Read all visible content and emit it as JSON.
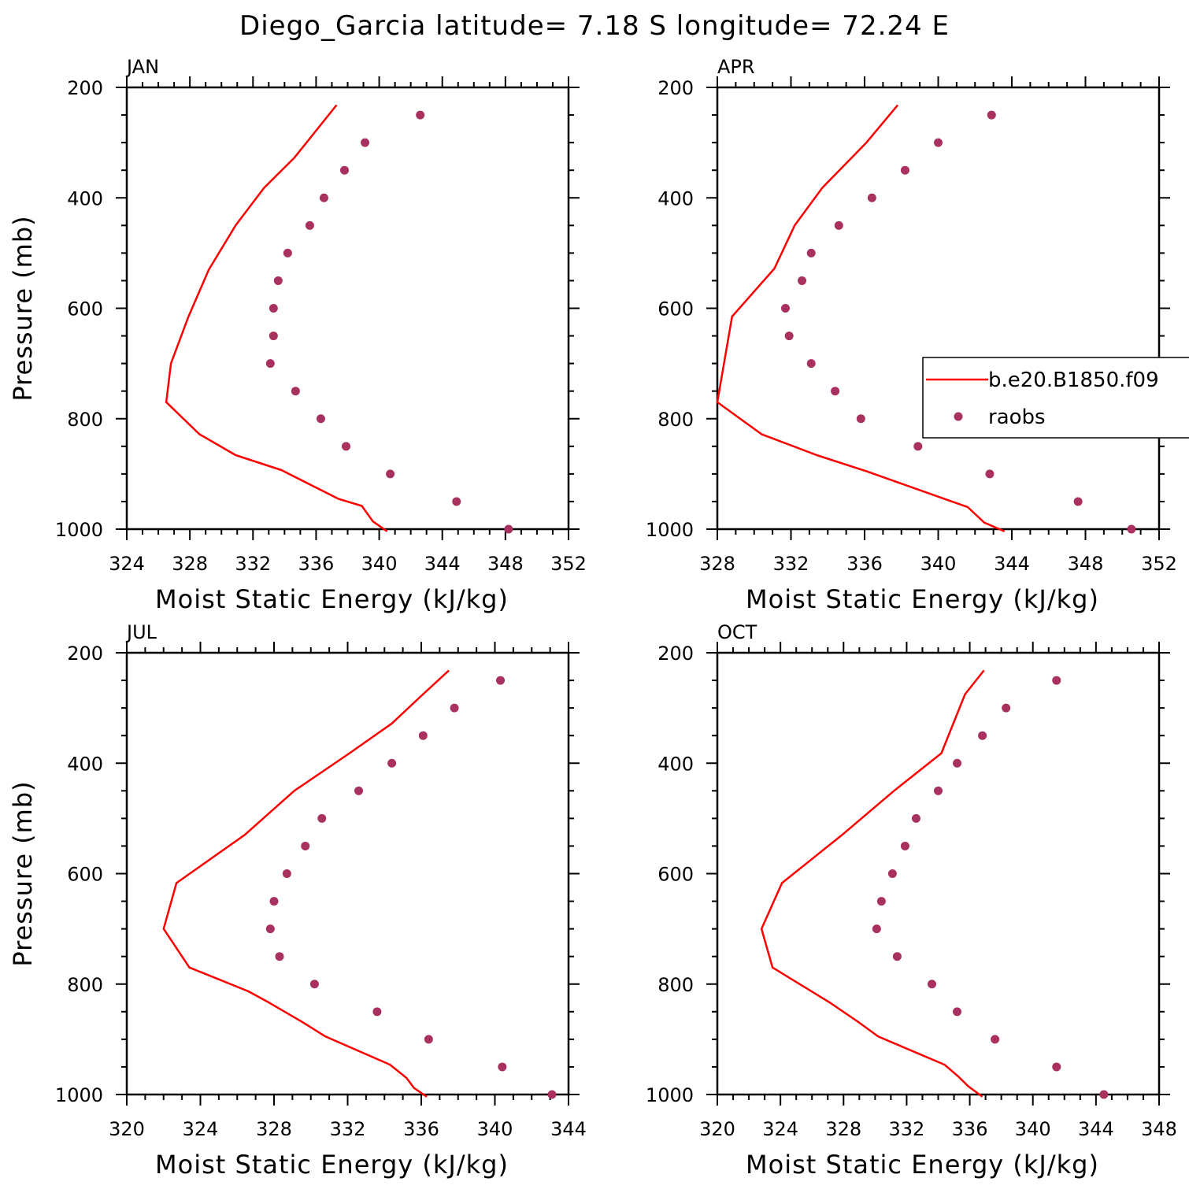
{
  "title": "Diego_Garcia  latitude= 7.18 S longitude= 72.24 E",
  "colors": {
    "model_line": "#ff0000",
    "obs_marker": "#a8315f",
    "axes": "#000000"
  },
  "legend": {
    "location": "right side of APR panel",
    "entries": [
      {
        "label": "b.e20.B1850.f09",
        "style": "line"
      },
      {
        "label": "raobs",
        "style": "marker"
      }
    ]
  },
  "chart_data": [
    {
      "type": "line",
      "panel": "JAN",
      "xlabel": "Moist Static Energy (kJ/kg)",
      "ylabel": "Pressure (mb)",
      "xlim": [
        324,
        352
      ],
      "xticks": [
        324,
        328,
        332,
        336,
        340,
        344,
        348,
        352
      ],
      "ylim": [
        1000,
        200
      ],
      "yticks": [
        200,
        400,
        600,
        800,
        1000
      ],
      "series": [
        {
          "name": "b.e20.B1850.f09",
          "style": "line",
          "x": [
            340.5,
            339.6,
            338.9,
            337.4,
            333.8,
            330.9,
            328.6,
            326.5,
            326.8,
            327.9,
            329.2,
            330.9,
            332.7,
            334.6,
            337.3
          ],
          "y": [
            1004,
            986,
            958,
            945,
            893,
            866,
            828,
            770,
            700,
            616,
            530,
            450,
            382,
            328,
            232
          ]
        },
        {
          "name": "raobs",
          "style": "marker",
          "x": [
            348.2,
            344.9,
            340.7,
            337.9,
            336.3,
            334.7,
            333.1,
            333.3,
            333.3,
            333.6,
            334.2,
            335.6,
            336.5,
            337.8,
            339.1,
            342.6
          ],
          "y": [
            1000,
            950,
            900,
            850,
            800,
            750,
            700,
            650,
            600,
            550,
            500,
            450,
            400,
            350,
            300,
            250
          ]
        }
      ]
    },
    {
      "type": "line",
      "panel": "APR",
      "xlabel": "Moist Static Energy (kJ/kg)",
      "ylabel": "",
      "xlim": [
        328,
        352
      ],
      "xticks": [
        328,
        332,
        336,
        340,
        344,
        348,
        352
      ],
      "ylim": [
        1000,
        200
      ],
      "yticks": [
        200,
        400,
        600,
        800,
        1000
      ],
      "series": [
        {
          "name": "b.e20.B1850.f09",
          "style": "line",
          "x": [
            343.6,
            342.5,
            341.6,
            340.4,
            336.1,
            333.4,
            330.4,
            328.0,
            328.8,
            331.1,
            332.2,
            333.7,
            336.1,
            337.8
          ],
          "y": [
            1004,
            988,
            960,
            946,
            895,
            866,
            828,
            770,
            615,
            528,
            450,
            382,
            300,
            232
          ]
        },
        {
          "name": "raobs",
          "style": "marker",
          "x": [
            350.5,
            347.6,
            342.8,
            338.9,
            335.8,
            334.4,
            333.1,
            331.9,
            331.7,
            332.6,
            333.1,
            334.6,
            336.4,
            338.2,
            340.0,
            342.9
          ],
          "y": [
            1000,
            950,
            900,
            850,
            800,
            750,
            700,
            650,
            600,
            550,
            500,
            450,
            400,
            350,
            300,
            250
          ]
        }
      ]
    },
    {
      "type": "line",
      "panel": "JUL",
      "xlabel": "Moist Static Energy (kJ/kg)",
      "ylabel": "Pressure (mb)",
      "xlim": [
        320,
        344
      ],
      "xticks": [
        320,
        324,
        328,
        332,
        336,
        340,
        344
      ],
      "ylim": [
        1000,
        200
      ],
      "yticks": [
        200,
        400,
        600,
        800,
        1000
      ],
      "series": [
        {
          "name": "b.e20.B1850.f09",
          "style": "line",
          "x": [
            336.3,
            335.6,
            335.2,
            334.3,
            330.8,
            329.5,
            327.7,
            326.6,
            323.4,
            322.0,
            322.7,
            326.4,
            329.1,
            332.1,
            334.4,
            336.1,
            337.5
          ],
          "y": [
            1004,
            988,
            970,
            946,
            895,
            868,
            833,
            813,
            770,
            700,
            617,
            530,
            450,
            382,
            328,
            275,
            232
          ]
        },
        {
          "name": "raobs",
          "style": "marker",
          "x": [
            343.1,
            340.4,
            336.4,
            333.6,
            330.2,
            328.3,
            327.8,
            328.0,
            328.7,
            329.7,
            330.6,
            332.6,
            334.4,
            336.1,
            337.8,
            340.3
          ],
          "y": [
            1000,
            950,
            900,
            850,
            800,
            750,
            700,
            650,
            600,
            550,
            500,
            450,
            400,
            350,
            300,
            250
          ]
        }
      ]
    },
    {
      "type": "line",
      "panel": "OCT",
      "xlabel": "Moist Static Energy (kJ/kg)",
      "ylabel": "",
      "xlim": [
        320,
        348
      ],
      "xticks": [
        320,
        324,
        328,
        332,
        336,
        340,
        344,
        348
      ],
      "ylim": [
        1000,
        200
      ],
      "yticks": [
        200,
        400,
        600,
        800,
        1000
      ],
      "series": [
        {
          "name": "b.e20.B1850.f09",
          "style": "line",
          "x": [
            336.8,
            335.9,
            335.3,
            334.4,
            330.2,
            328.9,
            327.1,
            323.5,
            322.8,
            324.1,
            327.9,
            331.2,
            334.2,
            335.7,
            336.9
          ],
          "y": [
            1004,
            985,
            968,
            946,
            895,
            868,
            833,
            770,
            700,
            617,
            530,
            450,
            382,
            275,
            232
          ]
        },
        {
          "name": "raobs",
          "style": "marker",
          "x": [
            344.5,
            341.5,
            337.6,
            335.2,
            333.6,
            331.4,
            330.1,
            330.4,
            331.1,
            331.9,
            332.6,
            334.0,
            335.2,
            336.8,
            338.3,
            341.5
          ],
          "y": [
            1000,
            950,
            900,
            850,
            800,
            750,
            700,
            650,
            600,
            550,
            500,
            450,
            400,
            350,
            300,
            250
          ]
        }
      ]
    }
  ]
}
